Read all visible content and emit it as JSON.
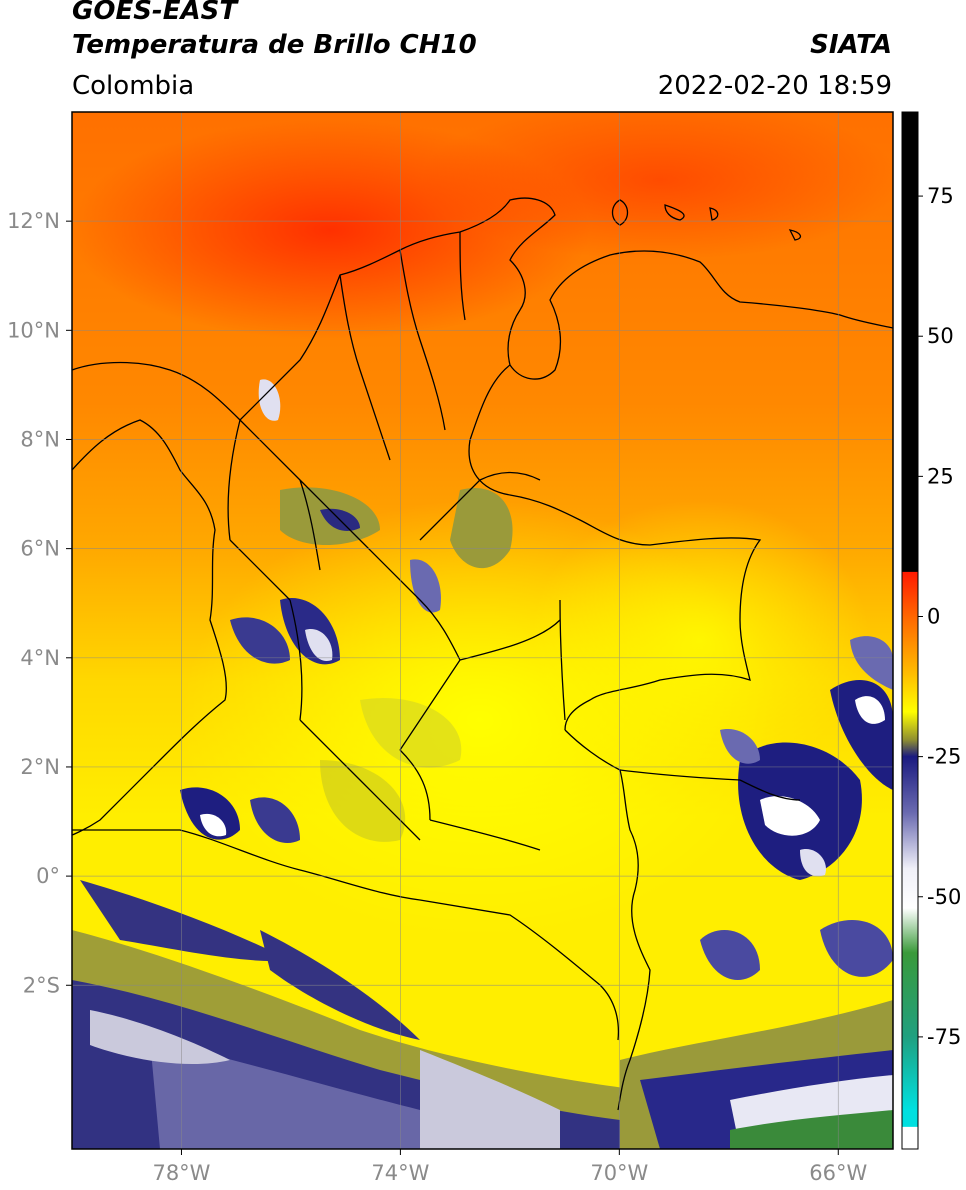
{
  "header": {
    "satellite": "GOES-EAST",
    "product": "Temperatura de Brillo CH10",
    "region": "Colombia",
    "source": "SIATA",
    "datetime": "2022-02-20 18:59"
  },
  "map": {
    "lon_range": [
      -80,
      -65
    ],
    "lat_range": [
      -5,
      14
    ],
    "lon_ticks": [
      {
        "value": -78,
        "label": "78°W"
      },
      {
        "value": -74,
        "label": "74°W"
      },
      {
        "value": -70,
        "label": "70°W"
      },
      {
        "value": -66,
        "label": "66°W"
      }
    ],
    "lat_ticks": [
      {
        "value": 12,
        "label": "12°N"
      },
      {
        "value": 10,
        "label": "10°N"
      },
      {
        "value": 8,
        "label": "8°N"
      },
      {
        "value": 6,
        "label": "6°N"
      },
      {
        "value": 4,
        "label": "4°N"
      },
      {
        "value": 2,
        "label": "2°N"
      },
      {
        "value": 0,
        "label": "0°"
      },
      {
        "value": -2,
        "label": "2°S"
      }
    ],
    "grid": true
  },
  "colorbar": {
    "range": [
      -95,
      90
    ],
    "ticks": [
      {
        "value": 75,
        "label": "75"
      },
      {
        "value": 50,
        "label": "50"
      },
      {
        "value": 25,
        "label": "25"
      },
      {
        "value": 0,
        "label": "0"
      },
      {
        "value": -25,
        "label": "-25"
      },
      {
        "value": -50,
        "label": "-50"
      },
      {
        "value": -75,
        "label": "-75"
      }
    ],
    "stops": [
      {
        "value": 90,
        "color": "#000000"
      },
      {
        "value": 8,
        "color": "#000000"
      },
      {
        "value": 7.9,
        "color": "#ff1a00"
      },
      {
        "value": 0,
        "color": "#ff6600"
      },
      {
        "value": -10,
        "color": "#ffbb00"
      },
      {
        "value": -17,
        "color": "#ffff00"
      },
      {
        "value": -22,
        "color": "#8f8f30"
      },
      {
        "value": -25,
        "color": "#1a1a80"
      },
      {
        "value": -35,
        "color": "#6a6ab0"
      },
      {
        "value": -45,
        "color": "#f0f0f8"
      },
      {
        "value": -52,
        "color": "#ffffff"
      },
      {
        "value": -60,
        "color": "#3a9a3a"
      },
      {
        "value": -75,
        "color": "#20a080"
      },
      {
        "value": -88,
        "color": "#00e0e0"
      },
      {
        "value": -91,
        "color": "#00e0e0"
      },
      {
        "value": -91.1,
        "color": "#ffffff"
      },
      {
        "value": -95,
        "color": "#ffffff"
      }
    ]
  },
  "colors": {
    "warm_sea": "#ff7a00",
    "hot_core": "#ff3a00",
    "land_warm": "#ffd000",
    "cloud_yellow": "#ffff00",
    "cloud_olive": "#9a9a3a",
    "cloud_navy": "#1e1e80",
    "cloud_light": "#c8c8e8",
    "cloud_green": "#3a8a3a"
  }
}
